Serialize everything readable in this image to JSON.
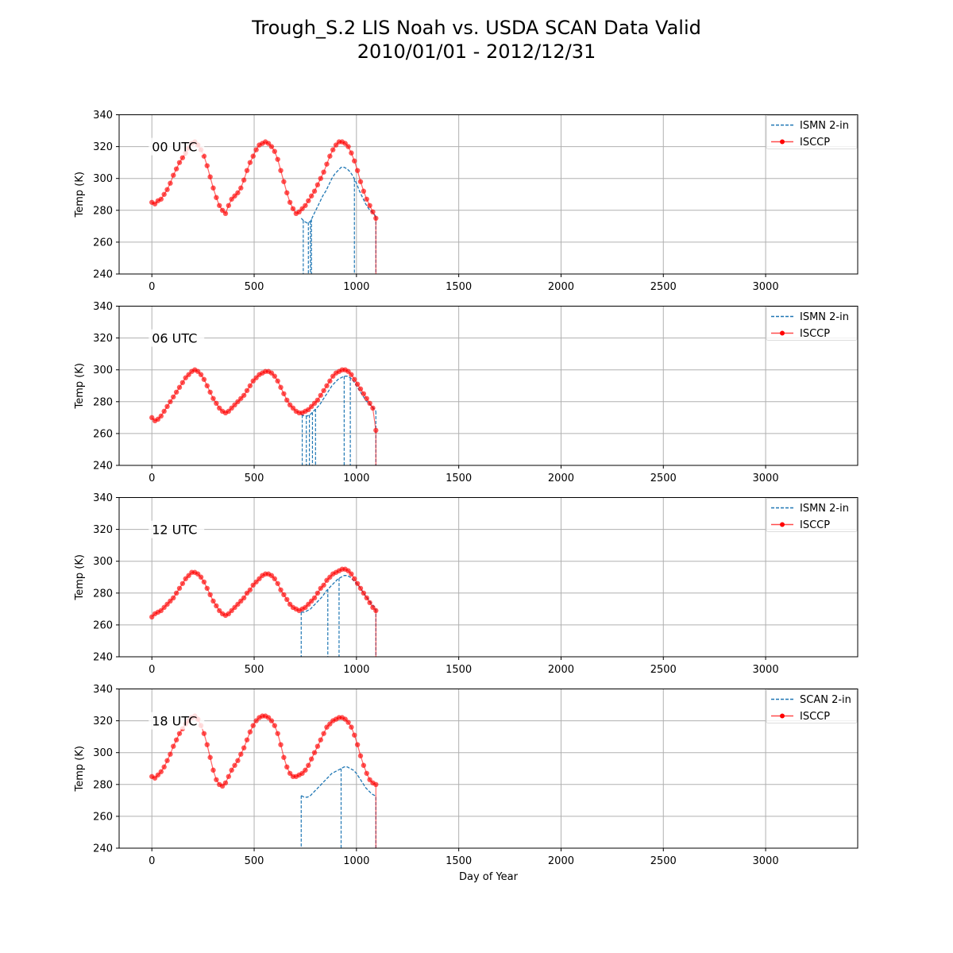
{
  "title_line1": "Trough_S.2 LIS Noah vs. USDA SCAN Data Valid",
  "title_line2": "2010/01/01 - 2012/12/31",
  "colors": {
    "ismn": "#1f77b4",
    "isccp": "#ff0000",
    "grid": "#b0b0b0"
  },
  "chart_data": [
    {
      "type": "line",
      "panel_label": "00 UTC",
      "xlabel": "",
      "ylabel": "Temp (K)",
      "xlim": [
        -160,
        3450
      ],
      "ylim": [
        240,
        340
      ],
      "xticks": [
        0,
        500,
        1000,
        1500,
        2000,
        2500,
        3000
      ],
      "yticks": [
        240,
        260,
        280,
        300,
        320,
        340
      ],
      "grid": true,
      "legend_position": "top-right",
      "series": [
        {
          "name": "ISMN 2-in",
          "style": "dashed",
          "x": [
            730,
            745,
            760,
            775,
            790,
            805,
            820,
            835,
            850,
            865,
            880,
            895,
            910,
            925,
            940,
            955,
            970,
            985,
            1000,
            1015,
            1030,
            1045,
            1060,
            1075,
            1090,
            1095
          ],
          "y": [
            275,
            273,
            272,
            273,
            277,
            281,
            285,
            289,
            292,
            296,
            300,
            303,
            305,
            307,
            307,
            306,
            304,
            301,
            297,
            292,
            288,
            284,
            281,
            279,
            277,
            276
          ],
          "drops": [
            740,
            765,
            775,
            780,
            990,
            1095
          ]
        },
        {
          "name": "ISCCP",
          "style": "line-markers",
          "x": [
            0,
            15,
            30,
            45,
            60,
            75,
            90,
            105,
            120,
            135,
            150,
            165,
            180,
            195,
            210,
            225,
            240,
            255,
            270,
            285,
            300,
            315,
            330,
            345,
            360,
            375,
            390,
            405,
            420,
            435,
            450,
            465,
            480,
            495,
            510,
            525,
            540,
            555,
            570,
            585,
            600,
            615,
            630,
            645,
            660,
            675,
            690,
            705,
            720,
            735,
            750,
            765,
            780,
            795,
            810,
            825,
            840,
            855,
            870,
            885,
            900,
            915,
            930,
            945,
            960,
            975,
            990,
            1005,
            1020,
            1035,
            1050,
            1065,
            1080,
            1095
          ],
          "y": [
            285,
            284,
            286,
            287,
            290,
            293,
            297,
            302,
            306,
            310,
            313,
            316,
            319,
            322,
            323,
            321,
            318,
            314,
            308,
            301,
            294,
            288,
            283,
            280,
            278,
            283,
            287,
            289,
            291,
            294,
            299,
            305,
            310,
            314,
            318,
            321,
            322,
            323,
            322,
            320,
            317,
            312,
            305,
            298,
            291,
            285,
            281,
            278,
            279,
            281,
            283,
            286,
            289,
            292,
            296,
            300,
            304,
            309,
            314,
            318,
            321,
            323,
            323,
            322,
            320,
            316,
            311,
            305,
            298,
            292,
            287,
            283,
            279,
            275
          ]
        }
      ]
    },
    {
      "type": "line",
      "panel_label": "06 UTC",
      "xlabel": "",
      "ylabel": "Temp (K)",
      "xlim": [
        -160,
        3450
      ],
      "ylim": [
        240,
        340
      ],
      "xticks": [
        0,
        500,
        1000,
        1500,
        2000,
        2500,
        3000
      ],
      "yticks": [
        240,
        260,
        280,
        300,
        320,
        340
      ],
      "grid": true,
      "legend_position": "top-right",
      "series": [
        {
          "name": "ISMN 2-in",
          "style": "dashed",
          "x": [
            730,
            745,
            760,
            775,
            790,
            805,
            820,
            835,
            850,
            865,
            880,
            895,
            910,
            925,
            940,
            955,
            970,
            985,
            1000,
            1015,
            1030,
            1045,
            1060,
            1075,
            1090,
            1095
          ],
          "y": [
            272,
            271,
            271,
            272,
            274,
            276,
            278,
            281,
            284,
            287,
            290,
            292,
            294,
            295,
            296,
            296,
            295,
            293,
            290,
            287,
            284,
            281,
            279,
            277,
            275,
            274
          ],
          "drops": [
            735,
            755,
            770,
            785,
            800,
            940,
            970,
            1095
          ]
        },
        {
          "name": "ISCCP",
          "style": "line-markers",
          "x": [
            0,
            15,
            30,
            45,
            60,
            75,
            90,
            105,
            120,
            135,
            150,
            165,
            180,
            195,
            210,
            225,
            240,
            255,
            270,
            285,
            300,
            315,
            330,
            345,
            360,
            375,
            390,
            405,
            420,
            435,
            450,
            465,
            480,
            495,
            510,
            525,
            540,
            555,
            570,
            585,
            600,
            615,
            630,
            645,
            660,
            675,
            690,
            705,
            720,
            735,
            750,
            765,
            780,
            795,
            810,
            825,
            840,
            855,
            870,
            885,
            900,
            915,
            930,
            945,
            960,
            975,
            990,
            1005,
            1020,
            1035,
            1050,
            1065,
            1080,
            1095
          ],
          "y": [
            270,
            268,
            269,
            271,
            274,
            277,
            280,
            283,
            286,
            289,
            292,
            295,
            297,
            299,
            300,
            299,
            297,
            294,
            290,
            286,
            282,
            279,
            276,
            274,
            273,
            274,
            276,
            278,
            280,
            282,
            284,
            287,
            290,
            293,
            295,
            297,
            298,
            299,
            299,
            298,
            296,
            293,
            289,
            285,
            281,
            278,
            276,
            274,
            273,
            273,
            274,
            275,
            277,
            279,
            281,
            284,
            287,
            290,
            293,
            296,
            298,
            299,
            300,
            300,
            299,
            297,
            294,
            291,
            288,
            285,
            282,
            279,
            276,
            262
          ]
        }
      ]
    },
    {
      "type": "line",
      "panel_label": "12 UTC",
      "xlabel": "",
      "ylabel": "Temp (K)",
      "xlim": [
        -160,
        3450
      ],
      "ylim": [
        240,
        340
      ],
      "xticks": [
        0,
        500,
        1000,
        1500,
        2000,
        2500,
        3000
      ],
      "yticks": [
        240,
        260,
        280,
        300,
        320,
        340
      ],
      "grid": true,
      "legend_position": "top-right",
      "series": [
        {
          "name": "ISMN 2-in",
          "style": "dashed",
          "x": [
            730,
            745,
            760,
            775,
            790,
            805,
            820,
            835,
            850,
            865,
            880,
            895,
            910,
            925,
            940,
            955,
            970,
            985,
            1000,
            1015,
            1030,
            1045,
            1060,
            1075,
            1090,
            1095
          ],
          "y": [
            268,
            268,
            269,
            270,
            272,
            274,
            276,
            278,
            281,
            283,
            285,
            287,
            289,
            290,
            291,
            291,
            290,
            288,
            286,
            284,
            281,
            278,
            276,
            273,
            271,
            270
          ],
          "drops": [
            730,
            860,
            915,
            1095
          ]
        },
        {
          "name": "ISCCP",
          "style": "line-markers",
          "x": [
            0,
            15,
            30,
            45,
            60,
            75,
            90,
            105,
            120,
            135,
            150,
            165,
            180,
            195,
            210,
            225,
            240,
            255,
            270,
            285,
            300,
            315,
            330,
            345,
            360,
            375,
            390,
            405,
            420,
            435,
            450,
            465,
            480,
            495,
            510,
            525,
            540,
            555,
            570,
            585,
            600,
            615,
            630,
            645,
            660,
            675,
            690,
            705,
            720,
            735,
            750,
            765,
            780,
            795,
            810,
            825,
            840,
            855,
            870,
            885,
            900,
            915,
            930,
            945,
            960,
            975,
            990,
            1005,
            1020,
            1035,
            1050,
            1065,
            1080,
            1095
          ],
          "y": [
            265,
            267,
            268,
            269,
            271,
            273,
            275,
            277,
            280,
            283,
            286,
            289,
            291,
            293,
            293,
            292,
            290,
            287,
            283,
            279,
            275,
            272,
            269,
            267,
            266,
            267,
            269,
            271,
            273,
            275,
            277,
            280,
            282,
            285,
            287,
            289,
            291,
            292,
            292,
            291,
            289,
            286,
            282,
            279,
            276,
            273,
            271,
            270,
            269,
            270,
            271,
            273,
            275,
            277,
            280,
            283,
            285,
            288,
            290,
            292,
            293,
            294,
            295,
            295,
            294,
            292,
            289,
            286,
            283,
            280,
            277,
            274,
            271,
            269
          ]
        }
      ]
    },
    {
      "type": "line",
      "panel_label": "18 UTC",
      "xlabel": "Day of Year",
      "ylabel": "Temp (K)",
      "xlim": [
        -160,
        3450
      ],
      "ylim": [
        240,
        340
      ],
      "xticks": [
        0,
        500,
        1000,
        1500,
        2000,
        2500,
        3000
      ],
      "yticks": [
        240,
        260,
        280,
        300,
        320,
        340
      ],
      "grid": true,
      "legend_position": "top-right",
      "series": [
        {
          "name": "SCAN 2-in",
          "style": "dashed",
          "x": [
            730,
            745,
            760,
            775,
            790,
            805,
            820,
            835,
            850,
            865,
            880,
            895,
            910,
            925,
            940,
            955,
            970,
            985,
            1000,
            1015,
            1030,
            1045,
            1060,
            1075,
            1090,
            1095
          ],
          "y": [
            273,
            272,
            272,
            273,
            275,
            277,
            279,
            281,
            283,
            285,
            287,
            288,
            289,
            290,
            291,
            291,
            290,
            289,
            287,
            284,
            281,
            278,
            276,
            274,
            273,
            272
          ],
          "drops": [
            730,
            925,
            1095
          ]
        },
        {
          "name": "ISCCP",
          "style": "line-markers",
          "x": [
            0,
            15,
            30,
            45,
            60,
            75,
            90,
            105,
            120,
            135,
            150,
            165,
            180,
            195,
            210,
            225,
            240,
            255,
            270,
            285,
            300,
            315,
            330,
            345,
            360,
            375,
            390,
            405,
            420,
            435,
            450,
            465,
            480,
            495,
            510,
            525,
            540,
            555,
            570,
            585,
            600,
            615,
            630,
            645,
            660,
            675,
            690,
            705,
            720,
            735,
            750,
            765,
            780,
            795,
            810,
            825,
            840,
            855,
            870,
            885,
            900,
            915,
            930,
            945,
            960,
            975,
            990,
            1005,
            1020,
            1035,
            1050,
            1065,
            1080,
            1095
          ],
          "y": [
            285,
            284,
            286,
            288,
            291,
            295,
            299,
            304,
            308,
            312,
            315,
            318,
            320,
            322,
            323,
            321,
            317,
            312,
            305,
            297,
            289,
            283,
            280,
            279,
            281,
            285,
            289,
            292,
            295,
            299,
            303,
            308,
            313,
            317,
            320,
            322,
            323,
            323,
            322,
            320,
            317,
            312,
            305,
            297,
            291,
            287,
            285,
            285,
            286,
            287,
            289,
            292,
            296,
            300,
            304,
            308,
            312,
            316,
            318,
            320,
            321,
            322,
            322,
            321,
            319,
            316,
            311,
            305,
            298,
            292,
            287,
            283,
            281,
            280
          ]
        }
      ]
    }
  ]
}
